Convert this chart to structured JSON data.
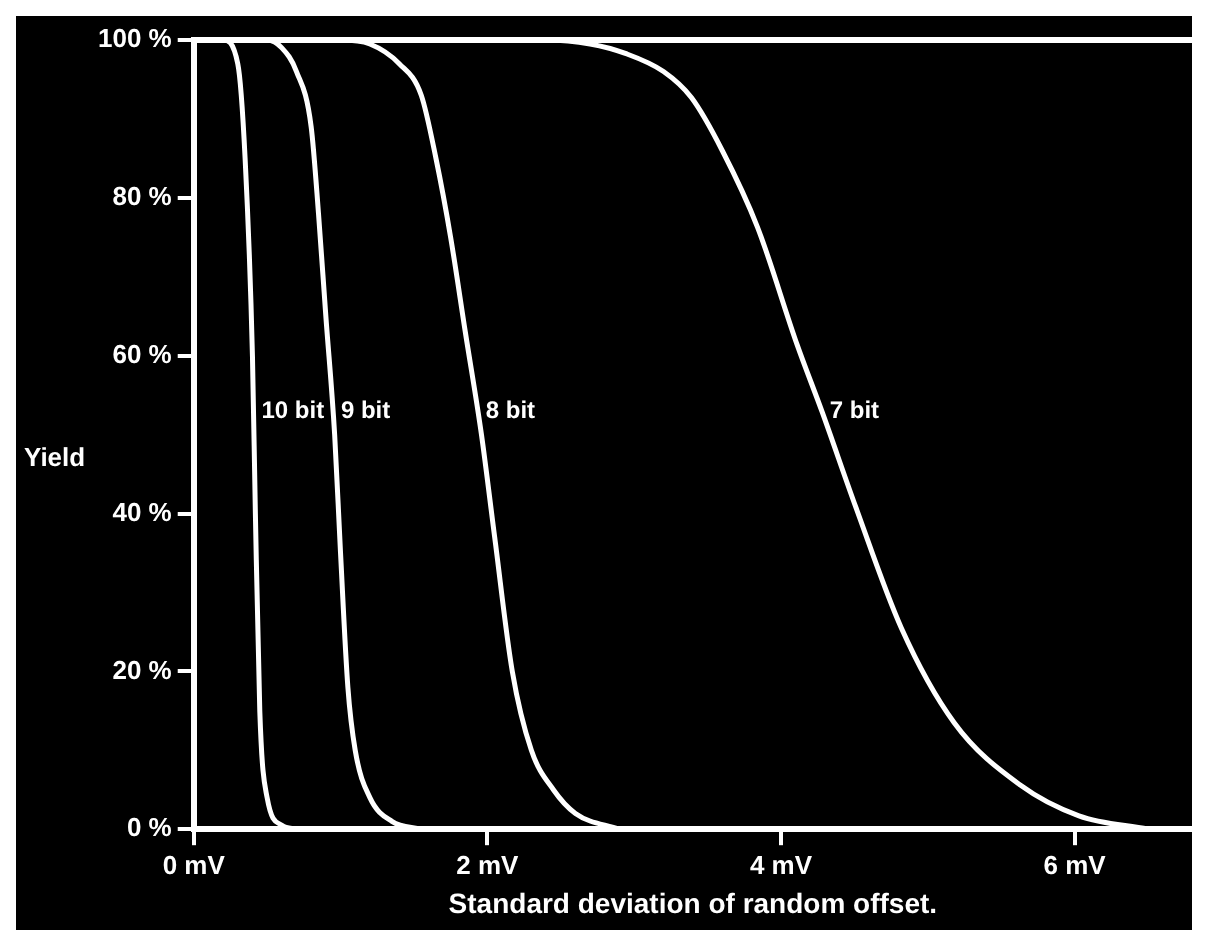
{
  "chart_data": {
    "type": "line",
    "xlabel": "Standard deviation of random offset.",
    "ylabel": "Yield",
    "xlim": [
      0,
      6.8
    ],
    "ylim": [
      0,
      100
    ],
    "xticks": [
      {
        "value": 0,
        "label": "0 mV"
      },
      {
        "value": 2,
        "label": "2 mV"
      },
      {
        "value": 4,
        "label": "4 mV"
      },
      {
        "value": 6,
        "label": "6 mV"
      }
    ],
    "yticks": [
      {
        "value": 0,
        "label": "0 %"
      },
      {
        "value": 20,
        "label": "20 %"
      },
      {
        "value": 40,
        "label": "40 %"
      },
      {
        "value": 60,
        "label": "60 %"
      },
      {
        "value": 80,
        "label": "80 %"
      },
      {
        "value": 100,
        "label": "100 %"
      }
    ],
    "marker": "none",
    "line_style": "solid",
    "series": [
      {
        "name": "10 bit",
        "color": "#ffffff",
        "x": [
          0,
          0.2,
          0.3,
          0.35,
          0.4,
          0.42,
          0.45,
          0.5,
          0.6,
          0.7
        ],
        "values": [
          100,
          100,
          97,
          85,
          60,
          40,
          15,
          4,
          0.5,
          0
        ]
      },
      {
        "name": "9 bit",
        "color": "#ffffff",
        "x": [
          0,
          0.5,
          0.6,
          0.7,
          0.8,
          0.85,
          0.9,
          0.96,
          1.0,
          1.05,
          1.1,
          1.2,
          1.35,
          1.55
        ],
        "values": [
          100,
          100,
          99,
          96,
          89,
          78,
          65,
          50,
          35,
          18,
          10,
          4,
          1,
          0
        ]
      },
      {
        "name": "8 bit",
        "color": "#ffffff",
        "x": [
          0,
          1.0,
          1.2,
          1.4,
          1.55,
          1.65,
          1.75,
          1.85,
          1.96,
          2.05,
          2.17,
          2.3,
          2.45,
          2.6,
          2.9
        ],
        "values": [
          100,
          100,
          99.5,
          97,
          93,
          85,
          75,
          63,
          50,
          37,
          20,
          10,
          5,
          2,
          0
        ]
      },
      {
        "name": "7 bit",
        "color": "#ffffff",
        "x": [
          0,
          2.4,
          2.7,
          2.94,
          3.2,
          3.39,
          3.6,
          3.84,
          4.11,
          4.28,
          4.51,
          4.82,
          5.18,
          5.63,
          6.03,
          6.5
        ],
        "values": [
          100,
          100,
          99.5,
          98.3,
          96,
          92.7,
          86,
          76.3,
          61.4,
          52.9,
          40.8,
          25.5,
          13.5,
          5.6,
          1.7,
          0
        ]
      }
    ]
  }
}
